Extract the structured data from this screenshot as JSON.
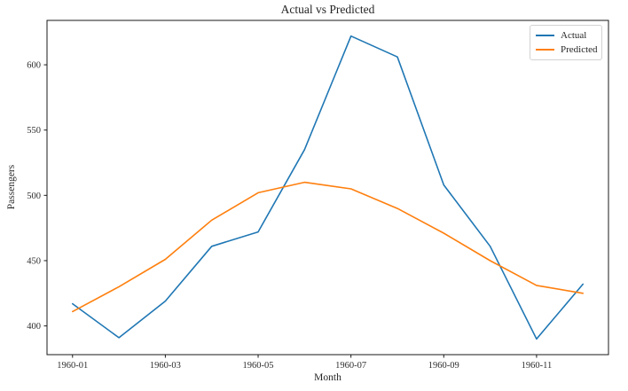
{
  "chart_data": {
    "type": "line",
    "title": "Actual vs Predicted",
    "xlabel": "Month",
    "ylabel": "Passengers",
    "x": [
      "1960-01",
      "1960-02",
      "1960-03",
      "1960-04",
      "1960-05",
      "1960-06",
      "1960-07",
      "1960-08",
      "1960-09",
      "1960-10",
      "1960-11",
      "1960-12"
    ],
    "x_tick_labels": [
      "1960-01",
      "1960-03",
      "1960-05",
      "1960-07",
      "1960-09",
      "1960-11"
    ],
    "y_ticks": [
      400,
      450,
      500,
      550,
      600
    ],
    "ylim": [
      378,
      634
    ],
    "x_margin": 0.55,
    "grid": false,
    "legend_position": "upper right",
    "series": [
      {
        "name": "Actual",
        "color": "#1f77b4",
        "values": [
          417,
          391,
          419,
          461,
          472,
          535,
          622,
          606,
          508,
          461,
          390,
          432
        ]
      },
      {
        "name": "Predicted",
        "color": "#ff7f0e",
        "values": [
          411,
          430,
          451,
          481,
          502,
          510,
          505,
          490,
          471,
          450,
          431,
          425
        ]
      }
    ]
  }
}
